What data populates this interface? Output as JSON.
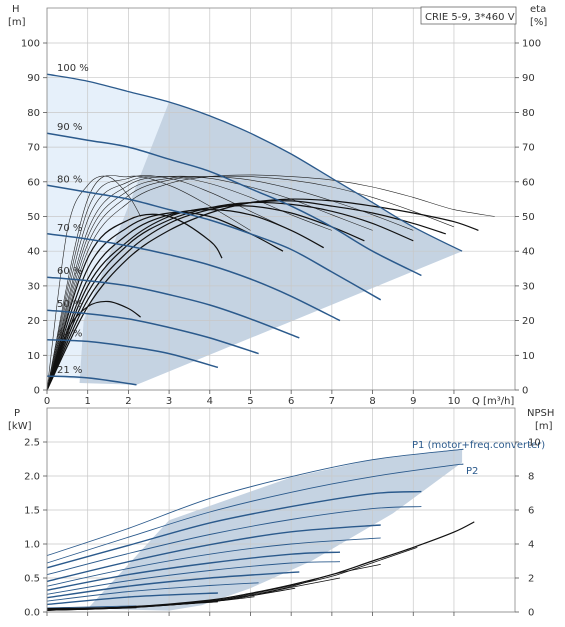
{
  "chart_data": [
    {
      "type": "line",
      "title": "CRIE 5-9, 3*460 V",
      "ylabel": "H",
      "ylabel_unit": "[m]",
      "y2label": "eta",
      "y2label_unit": "[%]",
      "xlabel": "Q [m³/h]",
      "xlim": [
        0,
        11.5
      ],
      "ylim": [
        0,
        100
      ],
      "y2lim": [
        0,
        100
      ],
      "x_ticks": [
        0,
        1,
        2,
        3,
        4,
        5,
        6,
        7,
        8,
        9,
        10
      ],
      "y_ticks": [
        0,
        10,
        20,
        30,
        40,
        50,
        60,
        70,
        80,
        90,
        100
      ],
      "grid": true,
      "colors": {
        "head": "#2b5a8c",
        "eta": "#111111",
        "region": "#c5d3e2",
        "region_light": "#e6f0fa",
        "title_border": "#666666"
      },
      "series": [
        {
          "name": "100 %",
          "x": [
            0,
            1,
            2,
            3,
            4,
            5,
            6,
            7,
            8,
            9,
            10.2
          ],
          "y": [
            91,
            89,
            86,
            83,
            79,
            74,
            68,
            61,
            54,
            47,
            40
          ]
        },
        {
          "name": "90 %",
          "x": [
            0,
            1,
            2,
            3,
            4,
            5,
            6,
            7,
            8,
            9.2
          ],
          "y": [
            74,
            72,
            70,
            66.5,
            63,
            58,
            53,
            47,
            40,
            33
          ]
        },
        {
          "name": "80 %",
          "x": [
            0,
            1,
            2,
            3,
            4,
            5,
            6,
            7,
            8.2
          ],
          "y": [
            59,
            57,
            55,
            52,
            49,
            45,
            40.5,
            34,
            26
          ]
        },
        {
          "name": "70 %",
          "x": [
            0,
            1,
            2,
            3,
            4,
            5,
            6,
            7.2
          ],
          "y": [
            45,
            43.5,
            41.5,
            39,
            36,
            32,
            27,
            20
          ]
        },
        {
          "name": "60 %",
          "x": [
            0,
            1,
            2,
            3,
            4,
            5,
            6.2
          ],
          "y": [
            32.5,
            31.5,
            30,
            27.5,
            24.5,
            20.5,
            15
          ]
        },
        {
          "name": "50 %",
          "x": [
            0,
            1,
            2,
            3,
            4,
            5.2
          ],
          "y": [
            23,
            22,
            20.5,
            18,
            15,
            10.5
          ]
        },
        {
          "name": "40 %",
          "x": [
            0,
            1,
            2,
            3,
            4.2
          ],
          "y": [
            14.5,
            14,
            12.5,
            10.5,
            6.5
          ]
        },
        {
          "name": "21 %",
          "x": [
            0,
            1,
            2.2
          ],
          "y": [
            4,
            3.5,
            1.5
          ]
        }
      ],
      "eta_curves": [
        {
          "x": [
            0,
            1,
            2,
            3,
            4,
            5,
            6,
            7,
            8,
            9,
            10,
            10.6
          ],
          "y": [
            0,
            24,
            38,
            46,
            51,
            54,
            55,
            54.5,
            53,
            51,
            48.5,
            46
          ]
        },
        {
          "x": [
            0,
            1,
            2,
            3,
            4,
            5,
            6,
            7,
            8,
            9,
            9.8
          ],
          "y": [
            0,
            26,
            40,
            48,
            52,
            54,
            54.5,
            53,
            51,
            48,
            45
          ]
        },
        {
          "x": [
            0,
            1,
            2,
            3,
            4,
            5,
            6,
            7,
            8,
            9
          ],
          "y": [
            0,
            28,
            42,
            49,
            52.5,
            54,
            53.5,
            51.5,
            48,
            43
          ]
        },
        {
          "x": [
            0,
            1,
            2,
            3,
            4,
            5,
            6,
            7,
            7.8
          ],
          "y": [
            0,
            30,
            43,
            50,
            52.5,
            53,
            51,
            47,
            43
          ]
        },
        {
          "x": [
            0,
            1,
            2,
            3,
            4,
            5,
            6,
            6.8
          ],
          "y": [
            0,
            32,
            45,
            50.5,
            52,
            50.5,
            46,
            41
          ]
        },
        {
          "x": [
            0,
            1,
            2,
            3,
            4,
            5,
            5.8
          ],
          "y": [
            0,
            35,
            47,
            51,
            50,
            45,
            40
          ]
        },
        {
          "x": [
            0,
            1,
            2,
            3,
            4,
            4.3
          ],
          "y": [
            0,
            38,
            49,
            50,
            43,
            38
          ]
        },
        {
          "x": [
            0,
            0.5,
            1,
            1.5,
            2,
            2.3
          ],
          "y": [
            0,
            17,
            24,
            25.5,
            23.5,
            21
          ]
        }
      ],
      "eta_thin_curves": [
        {
          "x": [
            0,
            1,
            2,
            3,
            4,
            5,
            6,
            7,
            8,
            9,
            10,
            11
          ],
          "y": [
            0,
            40,
            54,
            59.5,
            61.5,
            62,
            61.5,
            60.5,
            58.5,
            55.5,
            52,
            50
          ]
        },
        {
          "x": [
            0,
            1,
            2,
            3,
            4,
            5,
            6,
            7,
            8,
            9,
            10
          ],
          "y": [
            0,
            42,
            56,
            60.5,
            61.5,
            61.5,
            60.5,
            58.5,
            55.5,
            51.5,
            47
          ]
        },
        {
          "x": [
            0,
            1,
            2,
            3,
            4,
            5,
            6,
            7,
            8,
            9
          ],
          "y": [
            0,
            44,
            57.5,
            61,
            61.5,
            60.5,
            58,
            54.5,
            50.5,
            46
          ]
        },
        {
          "x": [
            0,
            1,
            2,
            3,
            4,
            5,
            6,
            7,
            8
          ],
          "y": [
            0,
            46,
            59,
            61.5,
            61,
            58.5,
            55,
            50.5,
            46
          ]
        },
        {
          "x": [
            0,
            1,
            2,
            3,
            4,
            5,
            6,
            7
          ],
          "y": [
            0,
            49,
            60,
            61.5,
            59.5,
            55.5,
            50.5,
            46
          ]
        },
        {
          "x": [
            0,
            1,
            2,
            3,
            4,
            5,
            6
          ],
          "y": [
            0,
            52,
            61,
            61,
            57,
            51.5,
            46
          ]
        },
        {
          "x": [
            0,
            1,
            2,
            3,
            4,
            5
          ],
          "y": [
            0,
            55,
            61.5,
            59,
            53,
            46
          ]
        },
        {
          "x": [
            0,
            0.5,
            1,
            1.5,
            2,
            2.3
          ],
          "y": [
            0,
            46,
            59,
            61.5,
            56,
            50
          ]
        }
      ]
    },
    {
      "type": "line",
      "ylabel": "P",
      "ylabel_unit": "[kW]",
      "y2label": "NPSH",
      "y2label_unit": "[m]",
      "xlim": [
        0,
        11.5
      ],
      "ylim": [
        0,
        2.75
      ],
      "y2lim": [
        0,
        11
      ],
      "y_ticks": [
        0,
        0.5,
        1.0,
        1.5,
        2.0,
        2.5
      ],
      "y_tick_labels": [
        "0.0",
        "0.5",
        "1.0",
        "1.5",
        "2.0",
        "2.5"
      ],
      "y2_ticks": [
        0,
        2,
        4,
        6,
        8,
        10
      ],
      "grid": true,
      "series": [
        {
          "name": "P1 (motor+freq.converter)",
          "x": [
            0,
            2,
            4,
            6,
            8,
            10,
            10.2
          ],
          "y": [
            0.83,
            1.23,
            1.67,
            1.99,
            2.24,
            2.38,
            2.39
          ]
        },
        {
          "name": "P2",
          "x": [
            0,
            2,
            4,
            6,
            8,
            10,
            10.2
          ],
          "y": [
            0.72,
            1.1,
            1.47,
            1.76,
            1.99,
            2.16,
            2.17
          ]
        },
        {
          "name": "",
          "x": [
            0,
            2,
            4,
            6,
            8,
            9.2
          ],
          "y": [
            0.65,
            0.98,
            1.31,
            1.55,
            1.74,
            1.77
          ]
        },
        {
          "name": "",
          "x": [
            0,
            2,
            4,
            6,
            8,
            9.2
          ],
          "y": [
            0.55,
            0.86,
            1.14,
            1.36,
            1.52,
            1.55
          ]
        },
        {
          "name": "",
          "x": [
            0,
            2,
            4,
            6,
            8.2
          ],
          "y": [
            0.45,
            0.74,
            0.99,
            1.18,
            1.28
          ]
        },
        {
          "name": "",
          "x": [
            0,
            2,
            4,
            6,
            8.2
          ],
          "y": [
            0.38,
            0.64,
            0.85,
            1.0,
            1.09
          ]
        },
        {
          "name": "",
          "x": [
            0,
            2,
            4,
            6,
            7.2
          ],
          "y": [
            0.32,
            0.55,
            0.72,
            0.85,
            0.88
          ]
        },
        {
          "name": "",
          "x": [
            0,
            2,
            4,
            6,
            7.2
          ],
          "y": [
            0.26,
            0.46,
            0.61,
            0.72,
            0.74
          ]
        },
        {
          "name": "",
          "x": [
            0,
            2,
            4,
            6.2
          ],
          "y": [
            0.21,
            0.38,
            0.5,
            0.59
          ]
        },
        {
          "name": "",
          "x": [
            0,
            2,
            4,
            5.2
          ],
          "y": [
            0.16,
            0.3,
            0.39,
            0.43
          ]
        },
        {
          "name": "",
          "x": [
            0,
            2,
            4.2
          ],
          "y": [
            0.11,
            0.22,
            0.28
          ]
        },
        {
          "name": "",
          "x": [
            0,
            2.2
          ],
          "y": [
            0.06,
            0.09
          ]
        }
      ],
      "npsh_curves": [
        {
          "x": [
            0,
            2,
            4,
            5,
            6,
            7,
            8,
            9,
            10,
            10.5
          ],
          "y": [
            0.2,
            0.3,
            0.7,
            1.1,
            1.6,
            2.2,
            3.0,
            3.8,
            4.7,
            5.3
          ]
        },
        {
          "x": [
            0,
            2,
            4,
            5,
            6,
            7,
            8,
            9.1
          ],
          "y": [
            0.15,
            0.3,
            0.65,
            1.05,
            1.55,
            2.1,
            2.9,
            3.8
          ]
        },
        {
          "x": [
            0,
            2,
            4,
            5,
            6,
            7,
            8.2
          ],
          "y": [
            0.1,
            0.3,
            0.65,
            1.0,
            1.5,
            2.2,
            2.8
          ]
        },
        {
          "x": [
            0,
            2,
            4,
            5,
            6,
            7.2
          ],
          "y": [
            0.1,
            0.28,
            0.6,
            0.95,
            1.45,
            2.0
          ]
        },
        {
          "x": [
            0,
            2,
            4,
            5,
            6.1
          ],
          "y": [
            0.1,
            0.28,
            0.6,
            0.95,
            1.4
          ]
        },
        {
          "x": [
            0,
            2,
            4,
            5.1
          ],
          "y": [
            0.1,
            0.25,
            0.6,
            0.9
          ]
        },
        {
          "x": [
            0,
            2,
            4.2
          ],
          "y": [
            0.1,
            0.25,
            0.6
          ]
        },
        {
          "x": [
            0,
            2.2
          ],
          "y": [
            0.1,
            0.25
          ]
        }
      ]
    }
  ]
}
